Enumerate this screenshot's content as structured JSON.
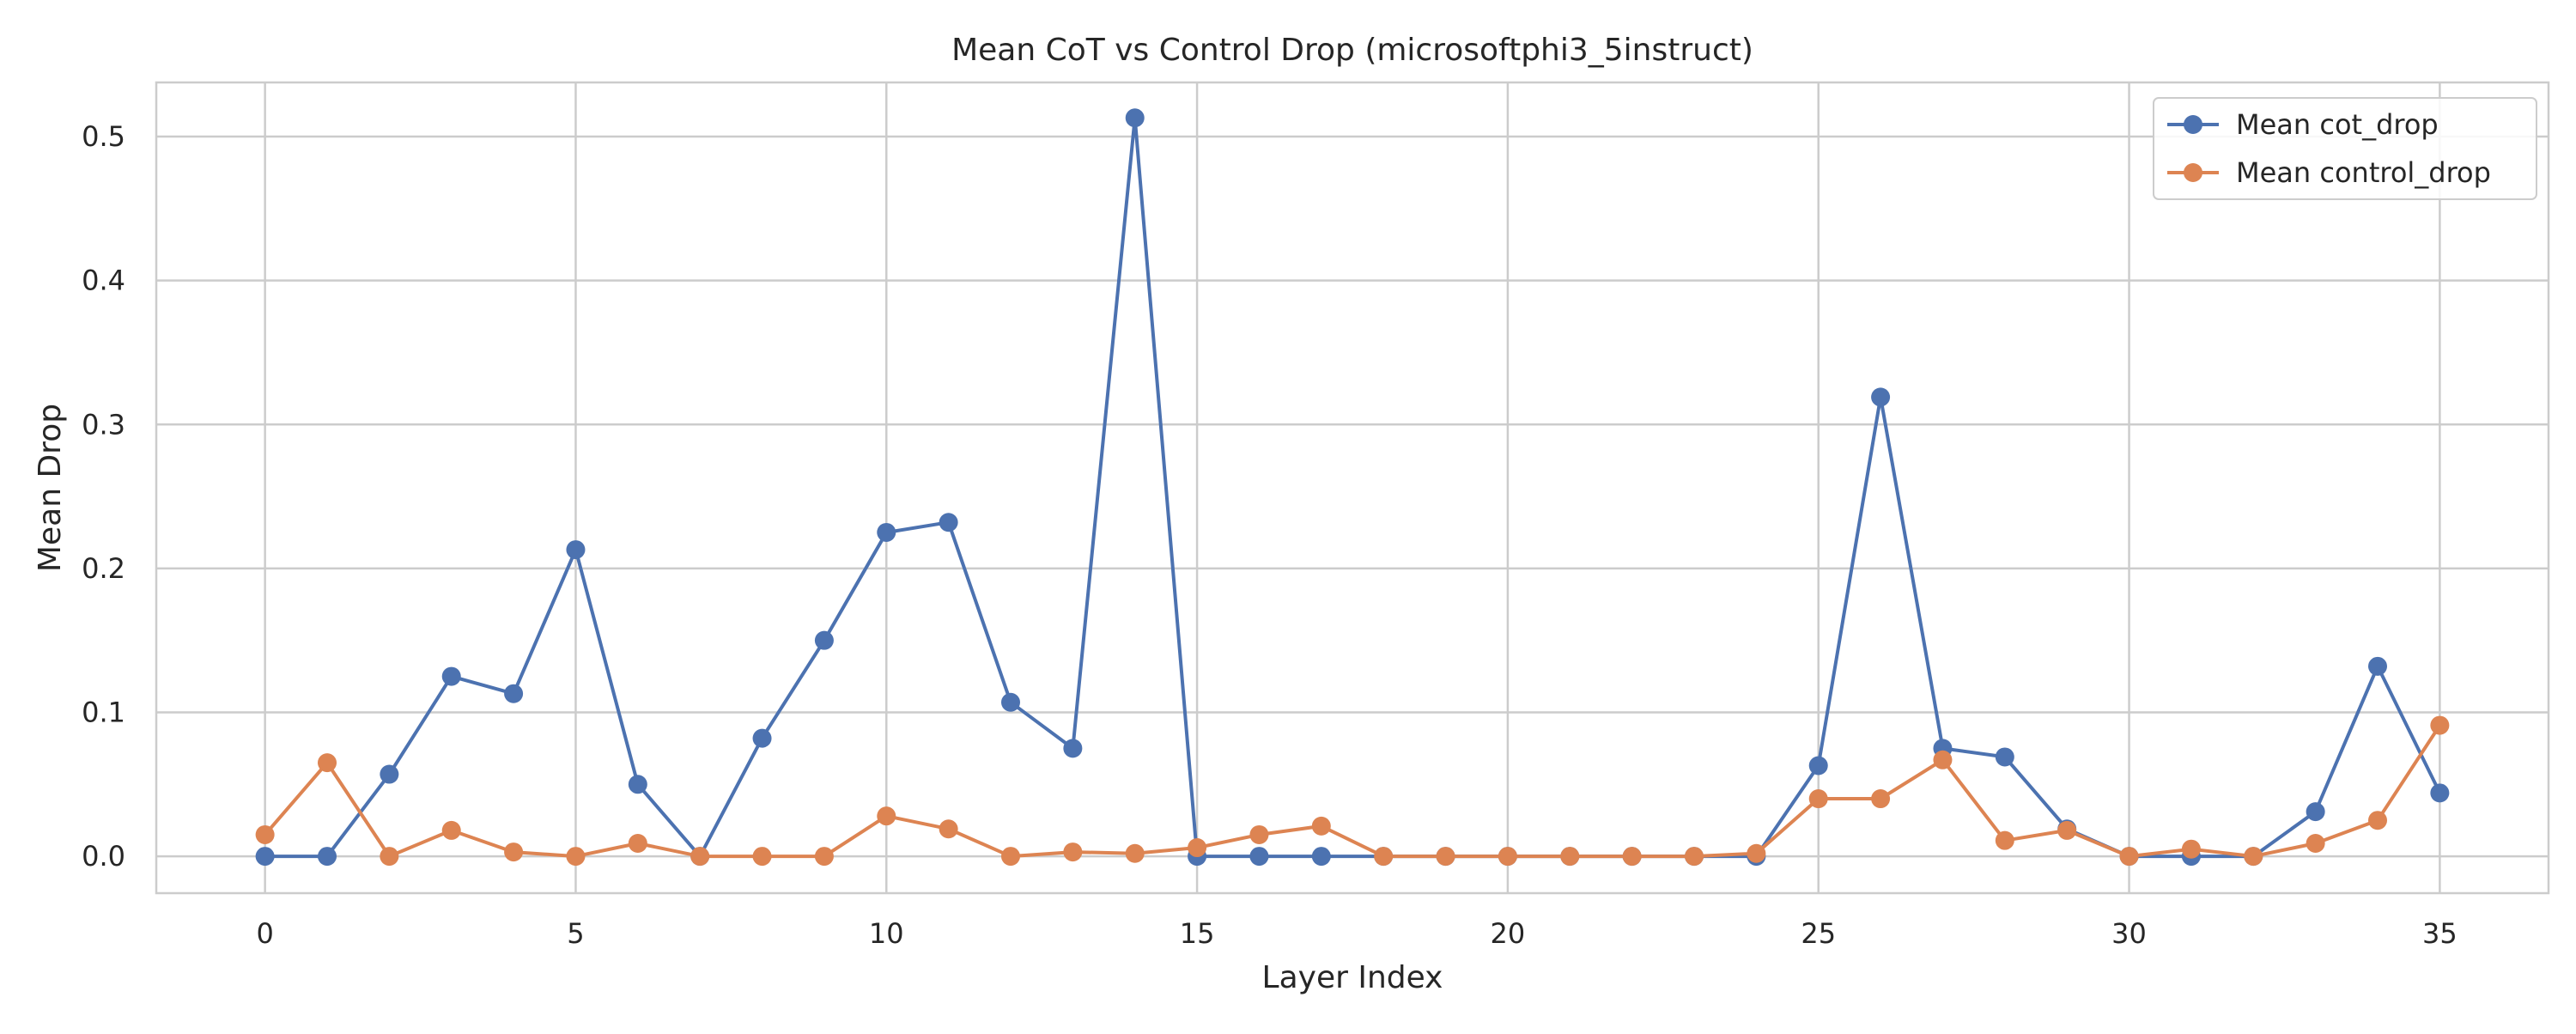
{
  "chart_data": {
    "type": "line",
    "title": "Mean CoT vs Control Drop (microsoftphi3_5instruct)",
    "xlabel": "Layer Index",
    "ylabel": "Mean Drop",
    "xlim": [
      -1.75,
      36.75
    ],
    "ylim": [
      -0.0256,
      0.5376
    ],
    "xticks": [
      0,
      5,
      10,
      15,
      20,
      25,
      30,
      35
    ],
    "yticks": [
      0.0,
      0.1,
      0.2,
      0.3,
      0.4,
      0.5
    ],
    "ytick_labels": [
      "0.0",
      "0.1",
      "0.2",
      "0.3",
      "0.4",
      "0.5"
    ],
    "grid": true,
    "legend_position": "top-right",
    "x": [
      0,
      1,
      2,
      3,
      4,
      5,
      6,
      7,
      8,
      9,
      10,
      11,
      12,
      13,
      14,
      15,
      16,
      17,
      18,
      19,
      20,
      21,
      22,
      23,
      24,
      25,
      26,
      27,
      28,
      29,
      30,
      31,
      32,
      33,
      34,
      35
    ],
    "series": [
      {
        "name": "Mean cot_drop",
        "color": "#4c72b0",
        "values": [
          0.0,
          0.0,
          0.057,
          0.125,
          0.113,
          0.213,
          0.05,
          0.0,
          0.082,
          0.15,
          0.225,
          0.232,
          0.107,
          0.075,
          0.513,
          0.0,
          0.0,
          0.0,
          0.0,
          0.0,
          0.0,
          0.0,
          0.0,
          0.0,
          0.0,
          0.063,
          0.319,
          0.075,
          0.069,
          0.019,
          0.0,
          0.0,
          0.0,
          0.031,
          0.132,
          0.044
        ]
      },
      {
        "name": "Mean control_drop",
        "color": "#dd8452",
        "values": [
          0.015,
          0.065,
          0.0,
          0.018,
          0.003,
          0.0,
          0.009,
          0.0,
          0.0,
          0.0,
          0.028,
          0.019,
          0.0,
          0.003,
          0.002,
          0.006,
          0.015,
          0.021,
          0.0,
          0.0,
          0.0,
          0.0,
          0.0,
          0.0,
          0.002,
          0.04,
          0.04,
          0.067,
          0.011,
          0.018,
          0.0,
          0.005,
          0.0,
          0.009,
          0.025,
          0.091
        ]
      }
    ]
  }
}
